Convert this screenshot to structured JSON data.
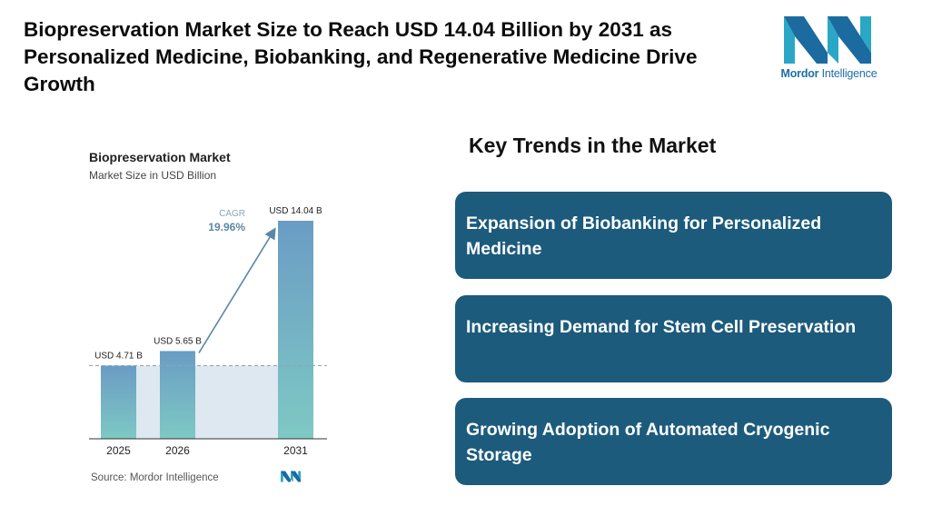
{
  "headline": "Biopreservation Market Size to Reach USD 14.04 Billion by 2031 as Personalized Medicine, Biobanking, and Regenerative Medicine Drive Growth",
  "logo": {
    "brand": "Mordor",
    "suffix": " Intelligence",
    "icon": "mordor-intelligence-logo"
  },
  "chart": {
    "title": "Biopreservation Market",
    "subtitle": "Market Size in USD Billion",
    "cagr_label": "CAGR",
    "cagr_value": "19.96%",
    "source": "Source: Mordor Intelligence"
  },
  "chart_data": {
    "type": "bar",
    "title": "Biopreservation Market",
    "subtitle": "Market Size in USD Billion",
    "categories": [
      "2025",
      "2026",
      "2031"
    ],
    "values": [
      4.71,
      5.65,
      14.04
    ],
    "data_labels": [
      "USD 4.71 B",
      "USD 5.65 B",
      "USD 14.04 B"
    ],
    "ylim": [
      0,
      14.04
    ],
    "grid": false,
    "annotations": [
      "CAGR 19.96%"
    ],
    "colors": {
      "bar_top": "#6a9cc4",
      "bar_bottom": "#7ec9c4",
      "band": "#dde8f1",
      "arrow": "#5b88a8"
    }
  },
  "trends": {
    "title": "Key Trends in the Market",
    "items": [
      "Expansion of Biobanking for Personalized Medicine",
      "Increasing Demand for Stem Cell Preservation",
      "Growing Adoption of Automated Cryogenic Storage"
    ],
    "card_color": "#1c5b7c"
  }
}
